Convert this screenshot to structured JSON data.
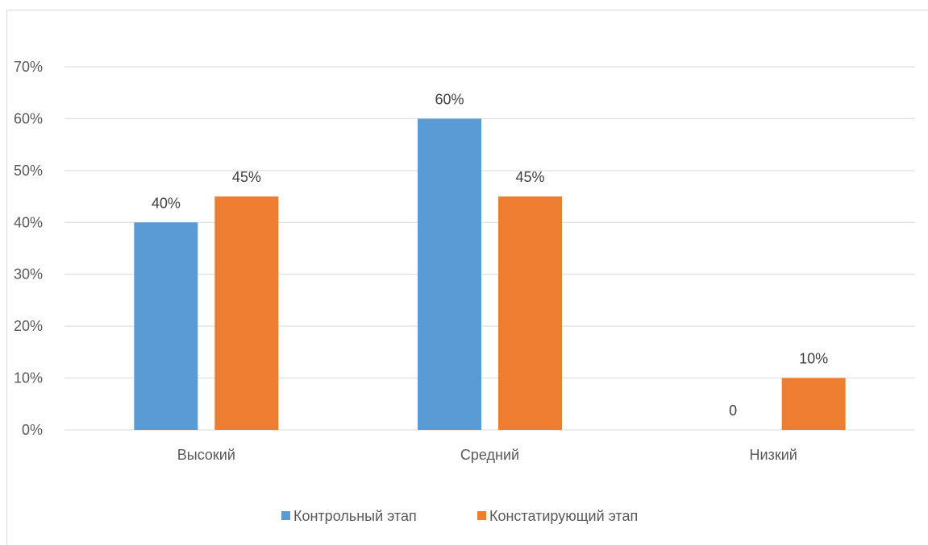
{
  "chart_data": {
    "type": "bar",
    "categories": [
      "Высокий",
      "Средний",
      "Низкий"
    ],
    "series": [
      {
        "name": "Контрольный этап",
        "values": [
          40,
          60,
          0
        ],
        "data_labels": [
          "40%",
          "60%",
          "0"
        ],
        "color": "#5B9BD5"
      },
      {
        "name": "Констатирующий этап",
        "values": [
          45,
          45,
          10
        ],
        "data_labels": [
          "45%",
          "45%",
          "10%"
        ],
        "color": "#ED7D31"
      }
    ],
    "y_ticks": [
      "0%",
      "10%",
      "20%",
      "30%",
      "40%",
      "50%",
      "60%",
      "70%"
    ],
    "ylim": [
      0,
      70
    ],
    "grid": true,
    "legend_position": "bottom",
    "title": "",
    "xlabel": "",
    "ylabel": ""
  }
}
